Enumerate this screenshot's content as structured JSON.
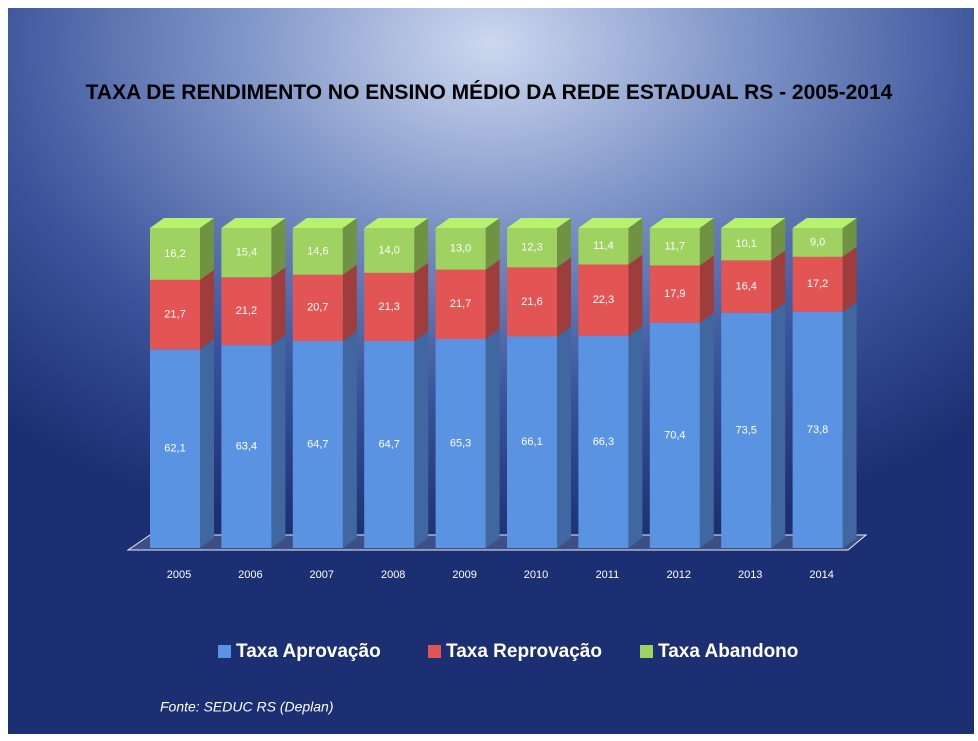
{
  "chart_data": {
    "type": "stacked-bar-3d",
    "title": "TAXA DE RENDIMENTO NO ENSINO MÉDIO DA REDE ESTADUAL  RS - 2005-2014",
    "categories": [
      "2005",
      "2006",
      "2007",
      "2008",
      "2009",
      "2010",
      "2011",
      "2012",
      "2013",
      "2014"
    ],
    "series": [
      {
        "name": "Taxa Aprovação",
        "color": "#5b93e3",
        "values": [
          62.1,
          63.4,
          64.7,
          64.7,
          65.3,
          66.1,
          66.3,
          70.4,
          73.5,
          73.8
        ],
        "value_labels": [
          "62,1",
          "63,4",
          "64,7",
          "64,7",
          "65,3",
          "66,1",
          "66,3",
          "70,4",
          "73,5",
          "73,8"
        ]
      },
      {
        "name": "Taxa Reprovação",
        "color": "#e35555",
        "values": [
          21.7,
          21.2,
          20.7,
          21.3,
          21.7,
          21.6,
          22.3,
          17.9,
          16.4,
          17.2
        ],
        "value_labels": [
          "21,7",
          "21,2",
          "20,7",
          "21,3",
          "21,7",
          "21,6",
          "22,3",
          "17,9",
          "16,4",
          "17,2"
        ]
      },
      {
        "name": "Taxa Abandono",
        "color": "#9fd260",
        "values": [
          16.2,
          15.4,
          14.6,
          14.0,
          13.0,
          12.3,
          11.4,
          11.7,
          10.1,
          9.0
        ],
        "value_labels": [
          "16,2",
          "15,4",
          "14,6",
          "14,0",
          "13,0",
          "12,3",
          "11,4",
          "11,7",
          "10,1",
          "9,0"
        ]
      }
    ],
    "legend": "bottom",
    "source": "Fonte: SEDUC RS (Deplan)"
  }
}
